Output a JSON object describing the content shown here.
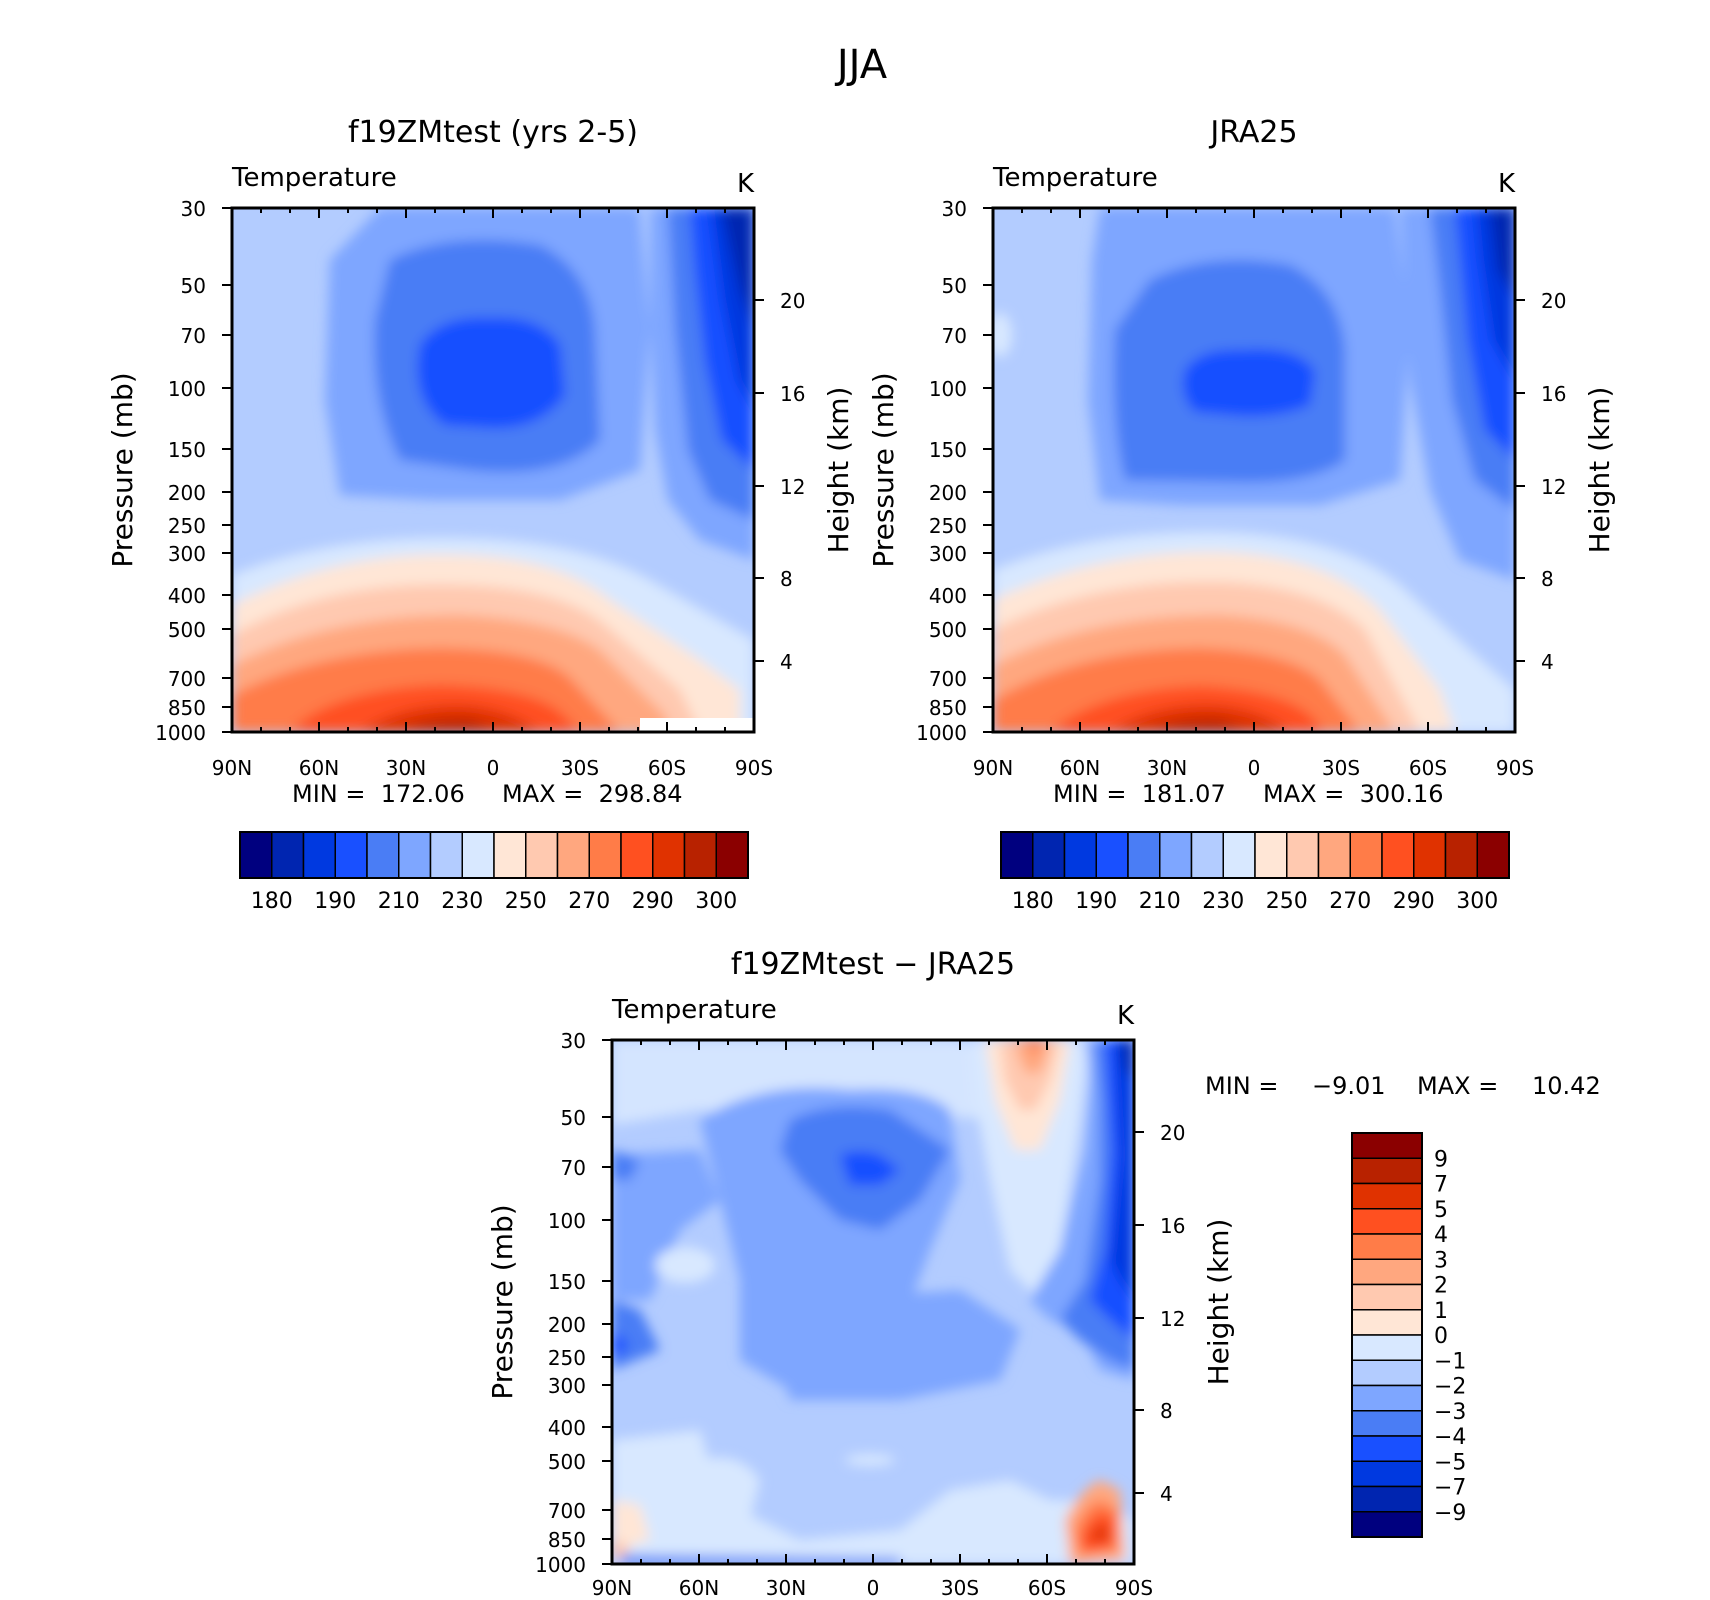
{
  "figure_title": "JJA",
  "colors": {
    "abs_palette": [
      "#00007f",
      "#0025b0",
      "#0039e0",
      "#1950ff",
      "#4a7df5",
      "#7ea6ff",
      "#b3ccff",
      "#d8e8ff",
      "#ffe6d6",
      "#ffc9b0",
      "#ffa77f",
      "#ff7c48",
      "#ff5020",
      "#e03200",
      "#b82200",
      "#8b0000"
    ],
    "diff_palette": [
      "#00007f",
      "#0025b0",
      "#0039e0",
      "#1950ff",
      "#4a7df5",
      "#7ea6ff",
      "#b3ccff",
      "#d8e8ff",
      "#ffe6d6",
      "#ffc9b0",
      "#ffa77f",
      "#ff7c48",
      "#ff5020",
      "#e03200",
      "#b82200",
      "#8b0000"
    ]
  },
  "chart_data": [
    {
      "type": "heatmap",
      "title": "f19ZMtest (yrs 2-5)",
      "subtitle_left": "Temperature",
      "subtitle_right": "K",
      "ylabel": "Pressure (mb)",
      "y2label": "Height (km)",
      "x_ticks": [
        "90N",
        "60N",
        "30N",
        "0",
        "30S",
        "60S",
        "90S"
      ],
      "y_ticks": [
        "30",
        "50",
        "70",
        "100",
        "150",
        "200",
        "250",
        "300",
        "400",
        "500",
        "700",
        "850",
        "1000"
      ],
      "y2_ticks": [
        "20",
        "16",
        "12",
        "8",
        "4"
      ],
      "min_label": "MIN =  172.06",
      "max_label": "MAX =  298.84",
      "colorbar_labels": [
        "180",
        "190",
        "210",
        "230",
        "250",
        "270",
        "290",
        "300"
      ],
      "min": 172.06,
      "max": 298.84
    },
    {
      "type": "heatmap",
      "title": "JRA25",
      "subtitle_left": "Temperature",
      "subtitle_right": "K",
      "ylabel": "Pressure (mb)",
      "y2label": "Height (km)",
      "x_ticks": [
        "90N",
        "60N",
        "30N",
        "0",
        "30S",
        "60S",
        "90S"
      ],
      "y_ticks": [
        "30",
        "50",
        "70",
        "100",
        "150",
        "200",
        "250",
        "300",
        "400",
        "500",
        "700",
        "850",
        "1000"
      ],
      "y2_ticks": [
        "20",
        "16",
        "12",
        "8",
        "4"
      ],
      "min_label": "MIN =  181.07",
      "max_label": "MAX =  300.16",
      "colorbar_labels": [
        "180",
        "190",
        "210",
        "230",
        "250",
        "270",
        "290",
        "300"
      ],
      "min": 181.07,
      "max": 300.16
    },
    {
      "type": "heatmap",
      "title": "f19ZMtest − JRA25",
      "subtitle_left": "Temperature",
      "subtitle_right": "K",
      "ylabel": "Pressure (mb)",
      "y2label": "Height (km)",
      "x_ticks": [
        "90N",
        "60N",
        "30N",
        "0",
        "30S",
        "60S",
        "90S"
      ],
      "y_ticks": [
        "30",
        "50",
        "70",
        "100",
        "150",
        "200",
        "250",
        "300",
        "400",
        "500",
        "700",
        "850",
        "1000"
      ],
      "y2_ticks": [
        "20",
        "16",
        "12",
        "8",
        "4"
      ],
      "min_label": "MIN =",
      "min_value": "−9.01",
      "max_label": "MAX =",
      "max_value": "10.42",
      "colorbar_labels": [
        "9",
        "7",
        "5",
        "4",
        "3",
        "2",
        "1",
        "0",
        "−1",
        "−2",
        "−3",
        "−4",
        "−5",
        "−7",
        "−9"
      ],
      "min": -9.01,
      "max": 10.42
    }
  ]
}
